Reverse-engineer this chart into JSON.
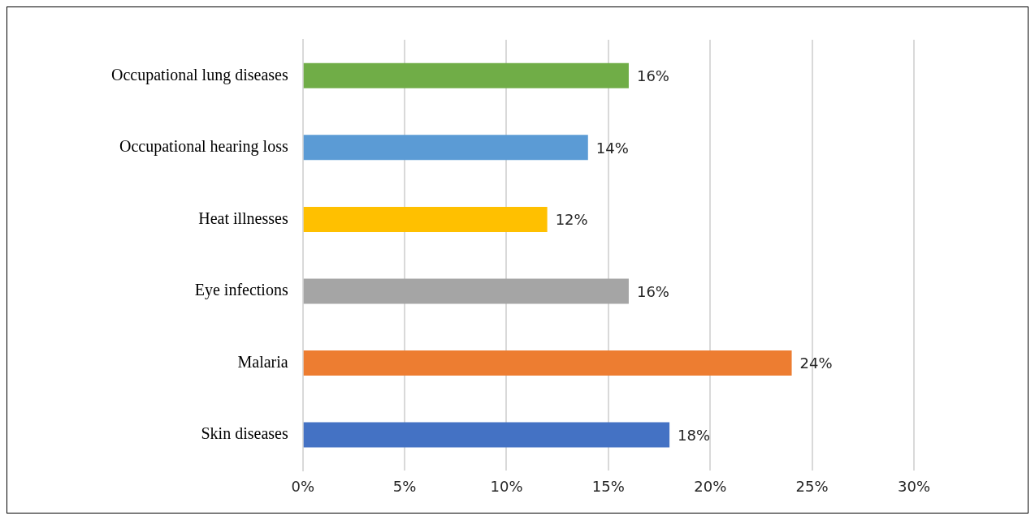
{
  "chart_data": {
    "type": "bar",
    "orientation": "horizontal",
    "categories": [
      "Occupational lung diseases",
      "Occupational hearing loss",
      "Heat illnesses",
      "Eye infections",
      "Malaria",
      "Skin diseases"
    ],
    "values": [
      16,
      14,
      12,
      16,
      24,
      18
    ],
    "colors": [
      "#70ad47",
      "#5b9bd5",
      "#ffc000",
      "#a5a5a5",
      "#ed7d31",
      "#4472c4"
    ],
    "value_labels": [
      "16%",
      "14%",
      "12%",
      "16%",
      "24%",
      "18%"
    ],
    "xlim": [
      0,
      30
    ],
    "xticks": [
      {
        "value": 0,
        "label": "0%"
      },
      {
        "value": 5,
        "label": "5%"
      },
      {
        "value": 10,
        "label": "10%"
      },
      {
        "value": 15,
        "label": "15%"
      },
      {
        "value": 20,
        "label": "20%"
      },
      {
        "value": 25,
        "label": "25%"
      },
      {
        "value": 30,
        "label": "30%"
      }
    ],
    "grid": "x",
    "legend": false
  }
}
